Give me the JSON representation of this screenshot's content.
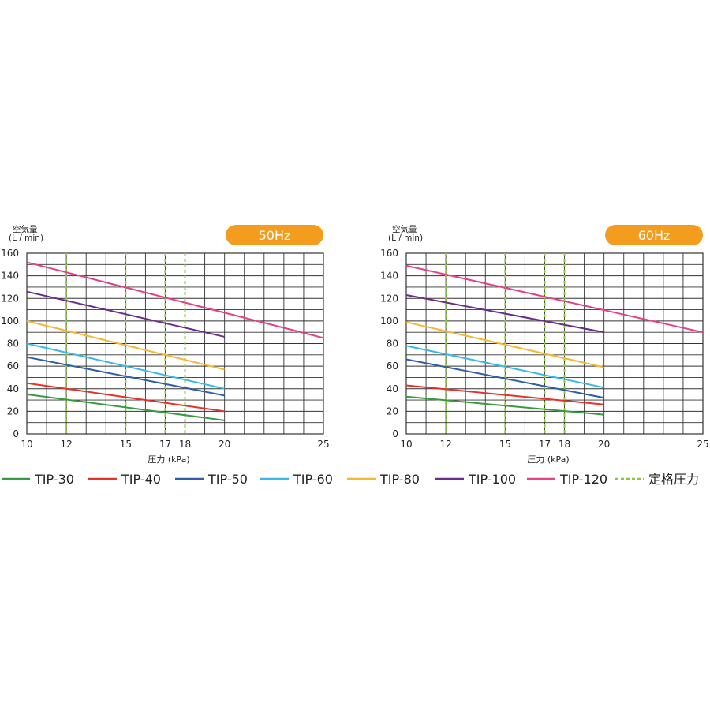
{
  "colors": {
    "badge": "#f39c1e",
    "grid": "#333333",
    "rated": "#8cc63f"
  },
  "legend": {
    "rated_label": "定格圧力"
  },
  "chart_data": [
    {
      "type": "line",
      "badge": "50Hz",
      "ylabel_line1": "空気量",
      "ylabel_line2": "(L / min)",
      "xlabel": "圧力 (kPa)",
      "xlim": [
        10,
        25
      ],
      "ylim": [
        0,
        160
      ],
      "yticks": [
        "0",
        "20",
        "40",
        "60",
        "80",
        "100",
        "120",
        "140",
        "160"
      ],
      "xticks": [
        "10",
        "12",
        "15",
        "17",
        "18",
        "20",
        "25"
      ],
      "xtick_values": [
        10,
        12,
        15,
        17,
        18,
        20,
        25
      ],
      "rated_pressures": [
        12,
        15,
        17,
        18
      ],
      "grid": true,
      "series": [
        {
          "name": "TIP-30",
          "color": "#3a9a3f",
          "x": [
            10,
            20
          ],
          "y": [
            35,
            12
          ]
        },
        {
          "name": "TIP-40",
          "color": "#e53127",
          "x": [
            10,
            20
          ],
          "y": [
            45,
            20
          ]
        },
        {
          "name": "TIP-50",
          "color": "#2f5fa5",
          "x": [
            10,
            20
          ],
          "y": [
            68,
            34
          ]
        },
        {
          "name": "TIP-60",
          "color": "#36b9e6",
          "x": [
            10,
            20
          ],
          "y": [
            80,
            40
          ]
        },
        {
          "name": "TIP-80",
          "color": "#f5b82e",
          "x": [
            10,
            20
          ],
          "y": [
            100,
            57
          ]
        },
        {
          "name": "TIP-100",
          "color": "#6b2c8c",
          "x": [
            10,
            20
          ],
          "y": [
            126,
            86
          ]
        },
        {
          "name": "TIP-120",
          "color": "#e6408a",
          "x": [
            10,
            25
          ],
          "y": [
            152,
            85
          ]
        }
      ]
    },
    {
      "type": "line",
      "badge": "60Hz",
      "ylabel_line1": "空気量",
      "ylabel_line2": "(L / min)",
      "xlabel": "圧力 (kPa)",
      "xlim": [
        10,
        25
      ],
      "ylim": [
        0,
        160
      ],
      "yticks": [
        "0",
        "20",
        "40",
        "60",
        "80",
        "100",
        "120",
        "140",
        "160"
      ],
      "xticks": [
        "10",
        "12",
        "15",
        "17",
        "18",
        "20",
        "25"
      ],
      "xtick_values": [
        10,
        12,
        15,
        17,
        18,
        20,
        25
      ],
      "rated_pressures": [
        12,
        15,
        17,
        18
      ],
      "grid": true,
      "series": [
        {
          "name": "TIP-30",
          "color": "#3a9a3f",
          "x": [
            10,
            20
          ],
          "y": [
            33,
            17
          ]
        },
        {
          "name": "TIP-40",
          "color": "#e53127",
          "x": [
            10,
            20
          ],
          "y": [
            43,
            26
          ]
        },
        {
          "name": "TIP-50",
          "color": "#2f5fa5",
          "x": [
            10,
            20
          ],
          "y": [
            66,
            32
          ]
        },
        {
          "name": "TIP-60",
          "color": "#36b9e6",
          "x": [
            10,
            20
          ],
          "y": [
            78,
            41
          ]
        },
        {
          "name": "TIP-80",
          "color": "#f5b82e",
          "x": [
            10,
            20
          ],
          "y": [
            99,
            59
          ]
        },
        {
          "name": "TIP-100",
          "color": "#6b2c8c",
          "x": [
            10,
            20
          ],
          "y": [
            123,
            90
          ]
        },
        {
          "name": "TIP-120",
          "color": "#e6408a",
          "x": [
            10,
            25
          ],
          "y": [
            149,
            90
          ]
        }
      ]
    }
  ]
}
